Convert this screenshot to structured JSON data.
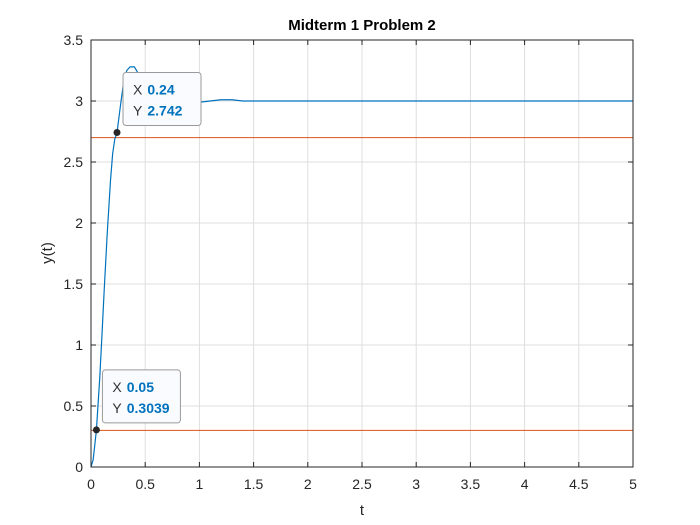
{
  "chart_data": {
    "type": "line",
    "title": "Midterm 1 Problem 2",
    "xlabel": "t",
    "ylabel": "y(t)",
    "xlim": [
      0,
      5
    ],
    "ylim": [
      0,
      3.5
    ],
    "xticks": [
      "0",
      "0.5",
      "1",
      "1.5",
      "2",
      "2.5",
      "3",
      "3.5",
      "4",
      "4.5",
      "5"
    ],
    "yticks": [
      "0",
      "0.5",
      "1",
      "1.5",
      "2",
      "2.5",
      "3",
      "3.5"
    ],
    "grid": true,
    "series": [
      {
        "color": "#0072bd",
        "x": [
          0,
          0.02,
          0.05,
          0.08,
          0.1,
          0.12,
          0.15,
          0.18,
          0.2,
          0.22,
          0.24,
          0.27,
          0.3,
          0.33,
          0.36,
          0.4,
          0.44,
          0.48,
          0.52,
          0.56,
          0.6,
          0.65,
          0.7,
          0.75,
          0.8,
          0.9,
          1.0,
          1.1,
          1.2,
          1.3,
          1.4,
          1.6,
          1.8,
          2.0,
          3.0,
          4.0,
          5.0
        ],
        "y": [
          0,
          0.06,
          0.3039,
          0.72,
          1.06,
          1.42,
          1.92,
          2.35,
          2.57,
          2.69,
          2.742,
          2.95,
          3.15,
          3.25,
          3.28,
          3.28,
          3.22,
          3.12,
          3.03,
          2.99,
          2.98,
          2.99,
          3.0,
          3.0,
          3.0,
          2.99,
          2.99,
          3.0,
          3.01,
          3.01,
          3.0,
          3.0,
          3.0,
          3.0,
          3.0,
          3.0,
          3.0
        ]
      }
    ],
    "reference_lines": [
      {
        "y": 2.7,
        "color": "#d95319"
      },
      {
        "y": 0.3,
        "color": "#d95319"
      }
    ],
    "datatips": [
      {
        "x_label": "X",
        "x_value": "0.24",
        "y_label": "Y",
        "y_value": "2.742",
        "px": 0.24,
        "py": 2.742
      },
      {
        "x_label": "X",
        "x_value": "0.05",
        "y_label": "Y",
        "y_value": "0.3039",
        "px": 0.05,
        "py": 0.3039
      }
    ]
  }
}
